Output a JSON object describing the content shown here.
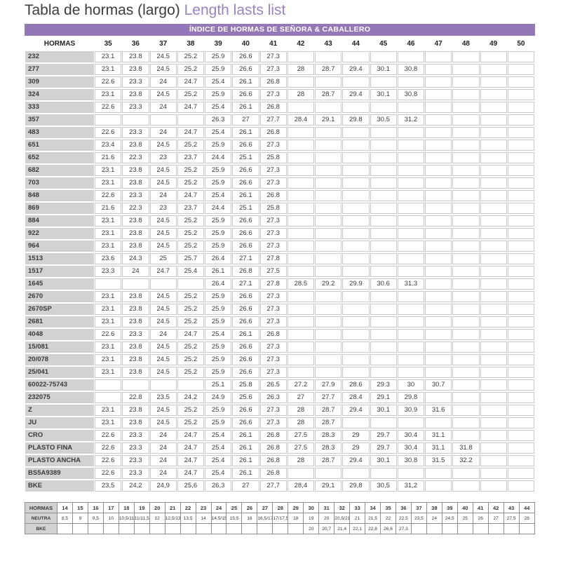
{
  "page": {
    "title_es": "Tabla de hormas (largo)",
    "title_en": " Length lasts list",
    "banner": "ÍNDICE DE HORMAS DE SEÑORA & CABALLERO"
  },
  "colors": {
    "purple": "#9477b6",
    "label_gray": "#d2d2d2",
    "cell_border": "#c9c9c9"
  },
  "main_table": {
    "header_label": "HORMAS",
    "columns": [
      "35",
      "36",
      "37",
      "38",
      "39",
      "40",
      "41",
      "42",
      "43",
      "44",
      "45",
      "46",
      "47",
      "48",
      "49",
      "50"
    ],
    "rows": [
      {
        "label": "232",
        "values": [
          "23.1",
          "23.8",
          "24.5",
          "25.2",
          "25.9",
          "26.6",
          "27.3",
          "",
          "",
          "",
          "",
          "",
          "",
          "",
          "",
          ""
        ]
      },
      {
        "label": "277",
        "values": [
          "23.1",
          "23.8",
          "24.5",
          "25.2",
          "25.9",
          "26.6",
          "27.3",
          "28",
          "28.7",
          "29.4",
          "30.1",
          "30.8",
          "",
          "",
          "",
          ""
        ]
      },
      {
        "label": "309",
        "values": [
          "22.6",
          "23.3",
          "24",
          "24.7",
          "25.4",
          "26.1",
          "26.8",
          "",
          "",
          "",
          "",
          "",
          "",
          "",
          "",
          ""
        ]
      },
      {
        "label": "324",
        "values": [
          "23.1",
          "23.8",
          "24.5",
          "25.2",
          "25.9",
          "26.6",
          "27.3",
          "28",
          "28.7",
          "29.4",
          "30.1",
          "30.8",
          "",
          "",
          "",
          ""
        ]
      },
      {
        "label": "333",
        "values": [
          "22.6",
          "23.3",
          "24",
          "24.7",
          "25.4",
          "26.1",
          "26.8",
          "",
          "",
          "",
          "",
          "",
          "",
          "",
          "",
          ""
        ]
      },
      {
        "label": "357",
        "values": [
          "",
          "",
          "",
          "",
          "26.3",
          "27",
          "27.7",
          "28.4",
          "29.1",
          "29.8",
          "30.5",
          "31.2",
          "",
          "",
          "",
          ""
        ]
      },
      {
        "label": "483",
        "values": [
          "22.6",
          "23.3",
          "24",
          "24.7",
          "25.4",
          "26.1",
          "26.8",
          "",
          "",
          "",
          "",
          "",
          "",
          "",
          "",
          ""
        ]
      },
      {
        "label": "651",
        "values": [
          "23.4",
          "23.8",
          "24.5",
          "25.2",
          "25.9",
          "26.6",
          "27.3",
          "",
          "",
          "",
          "",
          "",
          "",
          "",
          "",
          ""
        ]
      },
      {
        "label": "652",
        "values": [
          "21.6",
          "22.3",
          "23",
          "23.7",
          "24.4",
          "25.1",
          "25.8",
          "",
          "",
          "",
          "",
          "",
          "",
          "",
          "",
          ""
        ]
      },
      {
        "label": "682",
        "values": [
          "23.1",
          "23.8",
          "24.5",
          "25.2",
          "25.9",
          "26.6",
          "27.3",
          "",
          "",
          "",
          "",
          "",
          "",
          "",
          "",
          ""
        ]
      },
      {
        "label": "703",
        "values": [
          "23.1",
          "23.8",
          "24.5",
          "25.2",
          "25.9",
          "26.6",
          "27.3",
          "",
          "",
          "",
          "",
          "",
          "",
          "",
          "",
          ""
        ]
      },
      {
        "label": "848",
        "values": [
          "22.6",
          "23.3",
          "24",
          "24.7",
          "25.4",
          "26.1",
          "26.8",
          "",
          "",
          "",
          "",
          "",
          "",
          "",
          "",
          ""
        ]
      },
      {
        "label": "869",
        "values": [
          "21.6",
          "22.3",
          "23",
          "23.7",
          "24.4",
          "25.1",
          "25.8",
          "",
          "",
          "",
          "",
          "",
          "",
          "",
          "",
          ""
        ]
      },
      {
        "label": "884",
        "values": [
          "23.1",
          "23.8",
          "24.5",
          "25.2",
          "25.9",
          "26.6",
          "27.3",
          "",
          "",
          "",
          "",
          "",
          "",
          "",
          "",
          ""
        ]
      },
      {
        "label": "922",
        "values": [
          "23.1",
          "23.8",
          "24.5",
          "25.2",
          "25.9",
          "26.6",
          "27.3",
          "",
          "",
          "",
          "",
          "",
          "",
          "",
          "",
          ""
        ]
      },
      {
        "label": "964",
        "values": [
          "23.1",
          "23.8",
          "24.5",
          "25.2",
          "25.9",
          "26.6",
          "27.3",
          "",
          "",
          "",
          "",
          "",
          "",
          "",
          "",
          ""
        ]
      },
      {
        "label": "1513",
        "values": [
          "23.6",
          "24.3",
          "25",
          "25.7",
          "26.4",
          "27.1",
          "27.8",
          "",
          "",
          "",
          "",
          "",
          "",
          "",
          "",
          ""
        ]
      },
      {
        "label": "1517",
        "values": [
          "23.3",
          "24",
          "24.7",
          "25.4",
          "26.1",
          "26.8",
          "27.5",
          "",
          "",
          "",
          "",
          "",
          "",
          "",
          "",
          ""
        ]
      },
      {
        "label": "1645",
        "values": [
          "",
          "",
          "",
          "",
          "26.4",
          "27.1",
          "27.8",
          "28.5",
          "29.2",
          "29.9",
          "30.6",
          "31.3",
          "",
          "",
          "",
          ""
        ]
      },
      {
        "label": "2670",
        "values": [
          "23.1",
          "23.8",
          "24.5",
          "25.2",
          "25.9",
          "26.6",
          "27.3",
          "",
          "",
          "",
          "",
          "",
          "",
          "",
          "",
          ""
        ]
      },
      {
        "label": "2670SP",
        "values": [
          "23.1",
          "23.8",
          "24.5",
          "25.2",
          "25.9",
          "26.6",
          "27.3",
          "",
          "",
          "",
          "",
          "",
          "",
          "",
          "",
          ""
        ]
      },
      {
        "label": "2681",
        "values": [
          "23.1",
          "23.8",
          "24.5",
          "25.2",
          "25.9",
          "26.6",
          "27.3",
          "",
          "",
          "",
          "",
          "",
          "",
          "",
          "",
          ""
        ]
      },
      {
        "label": "4048",
        "values": [
          "22.6",
          "23.3",
          "24",
          "24.7",
          "25.4",
          "26.1",
          "26.8",
          "",
          "",
          "",
          "",
          "",
          "",
          "",
          "",
          ""
        ]
      },
      {
        "label": "15/081",
        "values": [
          "23.1",
          "23.8",
          "24.5",
          "25.2",
          "25.9",
          "26.6",
          "27.3",
          "",
          "",
          "",
          "",
          "",
          "",
          "",
          "",
          ""
        ]
      },
      {
        "label": "20/078",
        "values": [
          "23.1",
          "23.8",
          "24.5",
          "25.2",
          "25.9",
          "26.6",
          "27.3",
          "",
          "",
          "",
          "",
          "",
          "",
          "",
          "",
          ""
        ]
      },
      {
        "label": "25/041",
        "values": [
          "23.1",
          "23.8",
          "24.5",
          "25.2",
          "25.9",
          "26.6",
          "27.3",
          "",
          "",
          "",
          "",
          "",
          "",
          "",
          "",
          ""
        ]
      },
      {
        "label": "60022-75743",
        "values": [
          "",
          "",
          "",
          "",
          "25.1",
          "25.8",
          "26.5",
          "27.2",
          "27.9",
          "28.6",
          "29.3",
          "30",
          "30.7",
          "",
          "",
          ""
        ]
      },
      {
        "label": "232075",
        "values": [
          "",
          "22.8",
          "23.5",
          "24.2",
          "24.9",
          "25.6",
          "26.3",
          "27",
          "27.7",
          "28.4",
          "29.1",
          "29.8",
          "",
          "",
          "",
          ""
        ]
      },
      {
        "label": "Z",
        "values": [
          "23.1",
          "23.8",
          "24.5",
          "25.2",
          "25.9",
          "26.6",
          "27.3",
          "28",
          "28.7",
          "29.4",
          "30.1",
          "30.9",
          "31.6",
          "",
          "",
          ""
        ]
      },
      {
        "label": "JU",
        "values": [
          "23.1",
          "23.8",
          "24.5",
          "25.2",
          "25.9",
          "26.6",
          "27.3",
          "28",
          "28.7",
          "",
          "",
          "",
          "",
          "",
          "",
          ""
        ]
      },
      {
        "label": "CRO",
        "values": [
          "22.6",
          "23.3",
          "24",
          "24.7",
          "25.4",
          "26.1",
          "26.8",
          "27.5",
          "28.3",
          "29",
          "29.7",
          "30.4",
          "31.1",
          "",
          "",
          ""
        ]
      },
      {
        "label": "PLASTO FINA",
        "values": [
          "22.6",
          "23.3",
          "24",
          "24.7",
          "25.4",
          "26.1",
          "26.8",
          "27.5",
          "28.3",
          "29",
          "29.7",
          "30.4",
          "31.1",
          "31.8",
          "",
          ""
        ]
      },
      {
        "label": "PLASTO ANCHA",
        "values": [
          "22.6",
          "23.3",
          "24",
          "24.7",
          "25.4",
          "26.1",
          "26.8",
          "28",
          "28.7",
          "29.4",
          "30.1",
          "30.8",
          "31.5",
          "32.2",
          "",
          ""
        ]
      },
      {
        "label": "BS5A9389",
        "values": [
          "22.6",
          "23.3",
          "24",
          "24.7",
          "25.4",
          "26.1",
          "26.8",
          "",
          "",
          "",
          "",
          "",
          "",
          "",
          "",
          ""
        ]
      },
      {
        "label": "BKE",
        "values": [
          "23,5",
          "24,2",
          "24,9",
          "25,6",
          "26,3",
          "27",
          "27,7",
          "28,4",
          "29,1",
          "29,8",
          "30,5",
          "31,2",
          "",
          "",
          "",
          ""
        ]
      }
    ]
  },
  "bottom_table": {
    "rows": [
      {
        "label": "HORMAS",
        "bold": true,
        "values": [
          "14",
          "15",
          "16",
          "17",
          "18",
          "19",
          "20",
          "21",
          "22",
          "23",
          "24",
          "25",
          "26",
          "27",
          "28",
          "29",
          "30",
          "31",
          "32",
          "33",
          "34",
          "35",
          "36",
          "37",
          "38",
          "39",
          "40",
          "41",
          "42",
          "43",
          "44"
        ]
      },
      {
        "label": "NEUTRA",
        "bold": false,
        "values": [
          "8,5",
          "9",
          "9,5",
          "10",
          "10,5/11",
          "11/11,5",
          "12",
          "12,5/13",
          "13,5",
          "14",
          "14,5/15",
          "15,5",
          "16",
          "16,5/17",
          "17/17,5",
          "18",
          "19",
          "20",
          "20,5/21",
          "21",
          "21,5",
          "22",
          "22,5",
          "23,5",
          "24",
          "24,5",
          "25",
          "26",
          "27",
          "27,5",
          "28"
        ]
      },
      {
        "label": "BKE",
        "bold": false,
        "values": [
          "",
          "",
          "",
          "",
          "",
          "",
          "",
          "",
          "",
          "",
          "",
          "",
          "",
          "",
          "",
          "",
          "20",
          "20,7",
          "21,4",
          "22,1",
          "22,8",
          "26,6",
          "27,3",
          "",
          "",
          "",
          "",
          "",
          "",
          "",
          ""
        ]
      }
    ]
  }
}
